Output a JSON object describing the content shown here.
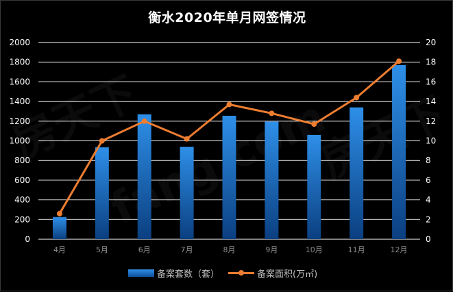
{
  "chart_data": {
    "type": "bar",
    "title": "衡水2020年单月网签情况",
    "categories": [
      "4月",
      "5月",
      "6月",
      "7月",
      "8月",
      "9月",
      "10月",
      "11月",
      "12月"
    ],
    "series": [
      {
        "name": "备案套数（套）",
        "type": "bar",
        "axis": "left",
        "color": "#1f78d6",
        "values": [
          225,
          935,
          1270,
          940,
          1255,
          1195,
          1060,
          1340,
          1770
        ]
      },
      {
        "name": "备案面积(万㎡)",
        "type": "line",
        "axis": "right",
        "color": "#ed7d31",
        "values": [
          2.6,
          10.0,
          12.0,
          10.2,
          13.7,
          12.8,
          11.7,
          14.4,
          18.1
        ]
      }
    ],
    "y_left": {
      "min": 0,
      "max": 2000,
      "ticks": [
        0,
        200,
        400,
        600,
        800,
        1000,
        1200,
        1400,
        1600,
        1800,
        2000
      ]
    },
    "y_right": {
      "min": 0,
      "max": 20,
      "ticks": [
        0,
        2,
        4,
        6,
        8,
        10,
        12,
        14,
        16,
        18,
        20
      ]
    },
    "grid": true,
    "legend": "bottom"
  }
}
